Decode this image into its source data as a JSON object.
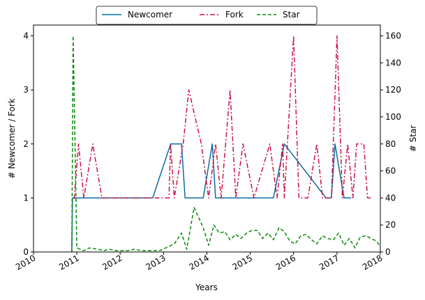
{
  "chart_data": {
    "type": "line",
    "xlabel": "Years",
    "ylabel_left": "# Newcomer / Fork",
    "ylabel_right": "# Star",
    "xlim": [
      "2010-01-01",
      "2018-01-01"
    ],
    "ylim_left": [
      0,
      4.2
    ],
    "ylim_right": [
      0,
      168
    ],
    "x_ticks": [
      "2010",
      "2011",
      "2012",
      "2013",
      "2014",
      "2015",
      "2016",
      "2017",
      "2018"
    ],
    "y_ticks_left": [
      "0",
      "1",
      "2",
      "3",
      "4"
    ],
    "y_ticks_right": [
      "0",
      "20",
      "40",
      "60",
      "80",
      "100",
      "120",
      "140",
      "160"
    ],
    "legend_position": "top-center",
    "grid": false,
    "series": [
      {
        "name": "Newcomer",
        "axis": "left",
        "color": "#0a6aa1",
        "dash": "solid",
        "points": [
          [
            "2010-11-20",
            0
          ],
          [
            "2010-11-25",
            1
          ],
          [
            "2012-10-01",
            1
          ],
          [
            "2013-03-01",
            2
          ],
          [
            "2013-06-01",
            2
          ],
          [
            "2013-07-01",
            1
          ],
          [
            "2013-12-01",
            1
          ],
          [
            "2014-02-15",
            2
          ],
          [
            "2014-03-15",
            1
          ],
          [
            "2015-07-15",
            1
          ],
          [
            "2015-10-15",
            2
          ],
          [
            "2016-10-01",
            1
          ],
          [
            "2016-11-15",
            1
          ],
          [
            "2016-12-15",
            2
          ],
          [
            "2017-03-01",
            1
          ],
          [
            "2017-05-01",
            1
          ]
        ]
      },
      {
        "name": "Fork",
        "axis": "left",
        "color": "#cc1144",
        "dash": "dashdot",
        "points": [
          [
            "2010-12-10",
            0.98
          ],
          [
            "2011-01-15",
            2
          ],
          [
            "2011-03-01",
            1
          ],
          [
            "2011-05-15",
            2
          ],
          [
            "2011-08-01",
            1
          ],
          [
            "2013-01-01",
            1
          ],
          [
            "2013-02-15",
            1
          ],
          [
            "2013-03-01",
            2
          ],
          [
            "2013-04-01",
            1
          ],
          [
            "2013-06-15",
            2
          ],
          [
            "2013-08-01",
            3
          ],
          [
            "2013-11-15",
            2
          ],
          [
            "2014-01-15",
            1
          ],
          [
            "2014-03-15",
            2
          ],
          [
            "2014-05-01",
            1
          ],
          [
            "2014-07-15",
            3
          ],
          [
            "2014-09-01",
            1
          ],
          [
            "2014-11-01",
            2
          ],
          [
            "2015-02-01",
            1
          ],
          [
            "2015-06-15",
            2
          ],
          [
            "2015-08-15",
            1
          ],
          [
            "2015-10-01",
            2
          ],
          [
            "2015-10-15",
            1
          ],
          [
            "2016-01-01",
            4
          ],
          [
            "2016-02-15",
            1
          ],
          [
            "2016-05-01",
            1
          ],
          [
            "2016-07-15",
            2
          ],
          [
            "2016-09-01",
            1
          ],
          [
            "2016-10-15",
            1
          ],
          [
            "2016-11-15",
            1
          ],
          [
            "2017-01-01",
            4
          ],
          [
            "2017-02-15",
            1
          ],
          [
            "2017-04-01",
            2
          ],
          [
            "2017-05-15",
            1
          ],
          [
            "2017-06-15",
            2
          ],
          [
            "2017-08-15",
            2
          ],
          [
            "2017-09-15",
            1
          ],
          [
            "2017-10-15",
            1
          ]
        ]
      },
      {
        "name": "Star",
        "axis": "right",
        "color": "#0a8a0a",
        "dash": "dashed",
        "points": [
          [
            "2010-11-20",
            0
          ],
          [
            "2010-12-01",
            160
          ],
          [
            "2011-01-01",
            3
          ],
          [
            "2011-03-01",
            1
          ],
          [
            "2011-04-15",
            3
          ],
          [
            "2011-07-01",
            2
          ],
          [
            "2011-08-15",
            1
          ],
          [
            "2011-10-01",
            2
          ],
          [
            "2011-12-01",
            1
          ],
          [
            "2012-03-01",
            1
          ],
          [
            "2012-05-01",
            2
          ],
          [
            "2012-07-01",
            1
          ],
          [
            "2012-09-01",
            1
          ],
          [
            "2012-12-01",
            1
          ],
          [
            "2013-04-01",
            6
          ],
          [
            "2013-06-01",
            14
          ],
          [
            "2013-07-15",
            2
          ],
          [
            "2013-09-15",
            33
          ],
          [
            "2013-12-01",
            18
          ],
          [
            "2014-01-15",
            5
          ],
          [
            "2014-03-01",
            20
          ],
          [
            "2014-04-15",
            14
          ],
          [
            "2014-06-01",
            15
          ],
          [
            "2014-07-15",
            9
          ],
          [
            "2014-09-01",
            13
          ],
          [
            "2014-10-15",
            10
          ],
          [
            "2014-12-01",
            14
          ],
          [
            "2015-01-15",
            16
          ],
          [
            "2015-03-01",
            16
          ],
          [
            "2015-04-15",
            10
          ],
          [
            "2015-06-01",
            14
          ],
          [
            "2015-07-15",
            9
          ],
          [
            "2015-09-01",
            18
          ],
          [
            "2015-10-15",
            15
          ],
          [
            "2015-12-01",
            8
          ],
          [
            "2016-01-15",
            6
          ],
          [
            "2016-03-01",
            12
          ],
          [
            "2016-04-15",
            13
          ],
          [
            "2016-06-01",
            9
          ],
          [
            "2016-07-15",
            6
          ],
          [
            "2016-09-01",
            12
          ],
          [
            "2016-10-15",
            10
          ],
          [
            "2016-12-01",
            9
          ],
          [
            "2017-01-15",
            14
          ],
          [
            "2017-03-01",
            5
          ],
          [
            "2017-04-15",
            10
          ],
          [
            "2017-06-01",
            3
          ],
          [
            "2017-07-15",
            11
          ],
          [
            "2017-09-01",
            12
          ],
          [
            "2017-10-15",
            10
          ],
          [
            "2017-12-01",
            8
          ],
          [
            "2018-01-15",
            2
          ],
          [
            "2018-03-01",
            3
          ]
        ]
      }
    ]
  }
}
